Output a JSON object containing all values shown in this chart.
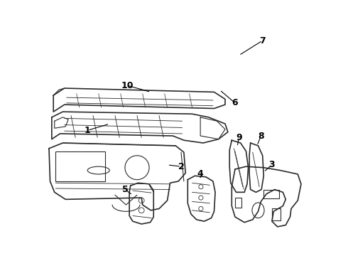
{
  "background_color": "#ffffff",
  "line_color": "#2a2a2a",
  "label_color": "#000000",
  "figure_width": 4.9,
  "figure_height": 3.6,
  "dpi": 100
}
